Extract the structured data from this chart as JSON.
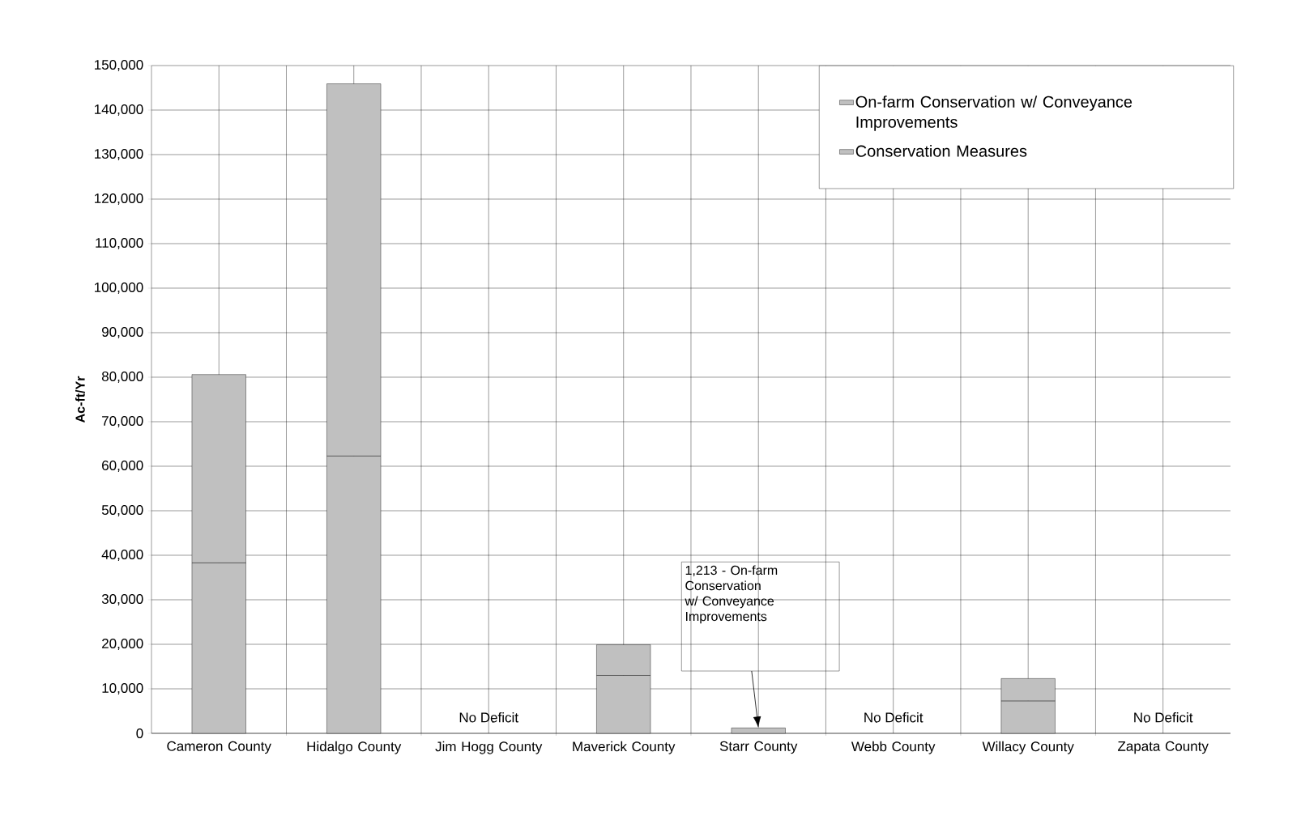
{
  "chart_data": {
    "type": "bar",
    "stacked": true,
    "ylabel": "Ac-ft/Yr",
    "categories": [
      "Cameron County",
      "Hidalgo County",
      "Jim Hogg County",
      "Maverick County",
      "Starr County",
      "Webb County",
      "Willacy County",
      "Zapata County"
    ],
    "series": [
      {
        "name": "Conservation Measures",
        "color": "#c0c0c0",
        "values": [
          38300,
          62300,
          null,
          13000,
          null,
          null,
          7300,
          null
        ]
      },
      {
        "name": "On-farm Conservation w/ Conveyance Improvements",
        "color": "#c0c0c0",
        "values": [
          42300,
          83600,
          null,
          6900,
          1213,
          null,
          5000,
          null
        ]
      }
    ],
    "ylim": [
      0,
      150000
    ],
    "yticks": [
      {
        "value": 0,
        "label": "0"
      },
      {
        "value": 10000,
        "label": "10,000"
      },
      {
        "value": 20000,
        "label": "20,000"
      },
      {
        "value": 30000,
        "label": "30,000"
      },
      {
        "value": 40000,
        "label": "40,000"
      },
      {
        "value": 50000,
        "label": "50,000"
      },
      {
        "value": 60000,
        "label": "60,000"
      },
      {
        "value": 70000,
        "label": "70,000"
      },
      {
        "value": 80000,
        "label": "80,000"
      },
      {
        "value": 90000,
        "label": "90,000"
      },
      {
        "value": 100000,
        "label": "100,000"
      },
      {
        "value": 110000,
        "label": "110,000"
      },
      {
        "value": 120000,
        "label": "120,000"
      },
      {
        "value": 130000,
        "label": "130,000"
      },
      {
        "value": 140000,
        "label": "140,000"
      },
      {
        "value": 150000,
        "label": "150,000"
      }
    ],
    "grid": true,
    "legend": "top right",
    "annotations": [
      "No Deficit",
      "No Deficit",
      "No Deficit",
      "1,213 - On-farm Conservation w/ Conveyance Improvements"
    ]
  }
}
